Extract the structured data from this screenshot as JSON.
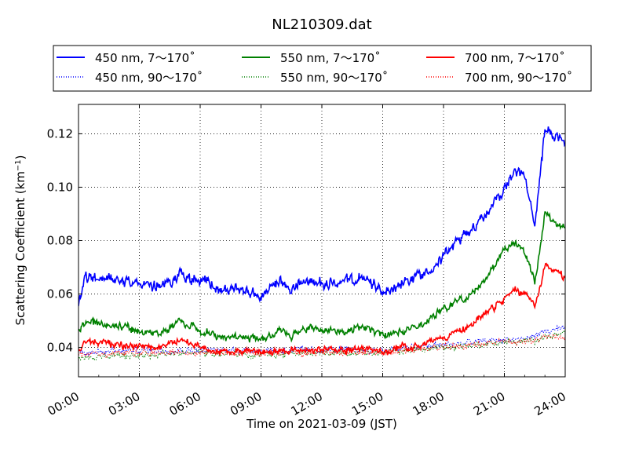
{
  "chart_data": {
    "type": "line",
    "title": "NL210309.dat",
    "xlabel": "Time on 2021-03-09 (JST)",
    "ylabel_main": "Scattering Coefficient (km",
    "ylabel_exp": "−1",
    "ylabel_close": ")",
    "x_units": "hours",
    "xlim": [
      0,
      24
    ],
    "ylim": [
      0.029,
      0.131
    ],
    "x_tick_values": [
      0,
      3,
      6,
      9,
      12,
      15,
      18,
      21,
      24
    ],
    "x_tick_labels": [
      "00:00",
      "03:00",
      "06:00",
      "09:00",
      "12:00",
      "15:00",
      "18:00",
      "21:00",
      "24:00"
    ],
    "y_tick_values": [
      0.04,
      0.06,
      0.08,
      0.1,
      0.12
    ],
    "y_tick_labels": [
      "0.04",
      "0.06",
      "0.08",
      "0.10",
      "0.12"
    ],
    "grid": true,
    "legend_placement": "top, above plot, 3 columns",
    "series": [
      {
        "name": "450 nm, 7～170˚",
        "color": "#0000ff",
        "style": "solid",
        "noise": 0.0022,
        "points": [
          [
            0,
            0.055
          ],
          [
            0.3,
            0.066
          ],
          [
            1,
            0.066
          ],
          [
            2,
            0.066
          ],
          [
            3,
            0.064
          ],
          [
            4,
            0.062
          ],
          [
            5,
            0.068
          ],
          [
            5.5,
            0.065
          ],
          [
            6,
            0.065
          ],
          [
            6.5,
            0.064
          ],
          [
            7,
            0.061
          ],
          [
            8,
            0.062
          ],
          [
            9,
            0.059
          ],
          [
            10,
            0.064
          ],
          [
            10.5,
            0.061
          ],
          [
            11,
            0.065
          ],
          [
            12,
            0.064
          ],
          [
            13,
            0.064
          ],
          [
            14,
            0.066
          ],
          [
            15,
            0.061
          ],
          [
            16,
            0.064
          ],
          [
            17,
            0.068
          ],
          [
            18,
            0.074
          ],
          [
            19,
            0.082
          ],
          [
            20,
            0.089
          ],
          [
            20.5,
            0.095
          ],
          [
            21,
            0.099
          ],
          [
            21.5,
            0.106
          ],
          [
            22,
            0.104
          ],
          [
            22.5,
            0.085
          ],
          [
            23,
            0.122
          ],
          [
            24,
            0.116
          ]
        ]
      },
      {
        "name": "550 nm, 7～170˚",
        "color": "#008000",
        "style": "solid",
        "noise": 0.0015,
        "points": [
          [
            0,
            0.047
          ],
          [
            0.3,
            0.049
          ],
          [
            1,
            0.049
          ],
          [
            2,
            0.048
          ],
          [
            3,
            0.046
          ],
          [
            4,
            0.045
          ],
          [
            5,
            0.05
          ],
          [
            5.5,
            0.048
          ],
          [
            6,
            0.046
          ],
          [
            7,
            0.044
          ],
          [
            8,
            0.044
          ],
          [
            9,
            0.043
          ],
          [
            10,
            0.046
          ],
          [
            10.5,
            0.044
          ],
          [
            11,
            0.047
          ],
          [
            12,
            0.047
          ],
          [
            13,
            0.046
          ],
          [
            14,
            0.048
          ],
          [
            15,
            0.044
          ],
          [
            16,
            0.046
          ],
          [
            17,
            0.049
          ],
          [
            18,
            0.055
          ],
          [
            19,
            0.058
          ],
          [
            20,
            0.065
          ],
          [
            20.5,
            0.07
          ],
          [
            21,
            0.077
          ],
          [
            21.5,
            0.079
          ],
          [
            22,
            0.076
          ],
          [
            22.5,
            0.064
          ],
          [
            23,
            0.09
          ],
          [
            24,
            0.084
          ]
        ]
      },
      {
        "name": "700 nm, 7～170˚",
        "color": "#ff0000",
        "style": "solid",
        "noise": 0.0014,
        "points": [
          [
            0,
            0.039
          ],
          [
            0.3,
            0.042
          ],
          [
            1,
            0.042
          ],
          [
            2,
            0.041
          ],
          [
            3,
            0.04
          ],
          [
            4,
            0.04
          ],
          [
            5,
            0.043
          ],
          [
            6,
            0.04
          ],
          [
            7,
            0.038
          ],
          [
            8,
            0.039
          ],
          [
            9,
            0.038
          ],
          [
            10,
            0.039
          ],
          [
            11,
            0.039
          ],
          [
            12,
            0.039
          ],
          [
            13,
            0.039
          ],
          [
            14,
            0.04
          ],
          [
            15,
            0.038
          ],
          [
            16,
            0.04
          ],
          [
            17,
            0.041
          ],
          [
            18,
            0.044
          ],
          [
            19,
            0.047
          ],
          [
            20,
            0.052
          ],
          [
            21,
            0.058
          ],
          [
            21.5,
            0.062
          ],
          [
            22,
            0.06
          ],
          [
            22.5,
            0.055
          ],
          [
            23,
            0.071
          ],
          [
            24,
            0.066
          ]
        ]
      },
      {
        "name": "450 nm, 90～170˚",
        "color": "#0000ff",
        "style": "dotted",
        "noise": 0.0012,
        "points": [
          [
            0,
            0.038
          ],
          [
            3,
            0.039
          ],
          [
            6,
            0.039
          ],
          [
            9,
            0.039
          ],
          [
            12,
            0.039
          ],
          [
            15,
            0.039
          ],
          [
            18,
            0.041
          ],
          [
            21,
            0.043
          ],
          [
            22,
            0.043
          ],
          [
            23,
            0.046
          ],
          [
            24,
            0.047
          ]
        ]
      },
      {
        "name": "550 nm, 90～170˚",
        "color": "#008000",
        "style": "dotted",
        "noise": 0.0012,
        "points": [
          [
            0,
            0.036
          ],
          [
            3,
            0.037
          ],
          [
            6,
            0.038
          ],
          [
            9,
            0.037
          ],
          [
            12,
            0.038
          ],
          [
            15,
            0.038
          ],
          [
            18,
            0.04
          ],
          [
            21,
            0.042
          ],
          [
            22,
            0.042
          ],
          [
            23,
            0.044
          ],
          [
            24,
            0.045
          ]
        ]
      },
      {
        "name": "700 nm, 90～170˚",
        "color": "#ff0000",
        "style": "dotted",
        "noise": 0.0012,
        "points": [
          [
            0,
            0.037
          ],
          [
            3,
            0.038
          ],
          [
            6,
            0.038
          ],
          [
            9,
            0.038
          ],
          [
            12,
            0.038
          ],
          [
            15,
            0.038
          ],
          [
            18,
            0.04
          ],
          [
            21,
            0.042
          ],
          [
            22,
            0.042
          ],
          [
            23,
            0.044
          ],
          [
            24,
            0.044
          ]
        ]
      }
    ],
    "legend_order": [
      0,
      3,
      1,
      4,
      2,
      5
    ]
  }
}
